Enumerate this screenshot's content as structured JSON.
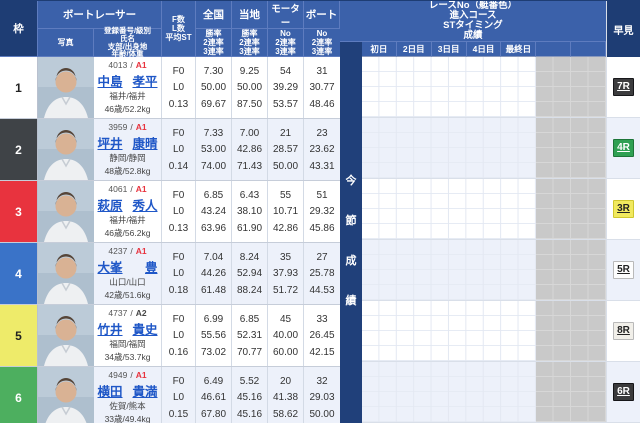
{
  "colors": {
    "header_blue": "#3b61aa",
    "navy": "#1e3d74",
    "row_alt": "#edf1fa",
    "gray_block": "#c9c9c9",
    "link_blue": "#1f57c7",
    "class_red": "#e8333e"
  },
  "header": {
    "left": {
      "frame": "枠",
      "group": "ボートレーサー",
      "photo": "写真",
      "info_lines": [
        "登録番号/級別",
        "氏名",
        "支部/出身地",
        "年齢/体重"
      ],
      "fl_lines": [
        "F数",
        "L数",
        "平均ST"
      ],
      "national": "全国",
      "local": "当地",
      "motor": "モーター",
      "boat": "ボート",
      "rate_lines": [
        "勝率",
        "2連率",
        "3連率"
      ],
      "no_lines": [
        "No",
        "2連率",
        "3連率"
      ]
    },
    "right": {
      "title_lines": [
        "レースNo（艇番色）",
        "進入コース",
        "STタイミング",
        "成績"
      ],
      "days": [
        "初日",
        "2日目",
        "3日目",
        "4日目",
        "最終日",
        "",
        ""
      ],
      "hayami": "早見",
      "season_label": [
        "今",
        "節",
        "成",
        "績"
      ]
    }
  },
  "rows": [
    {
      "frame": "1",
      "frame_bg": "#ffffff",
      "frame_fg": "#222222",
      "reg_no": "4013",
      "klass": "A1",
      "klass_color": "#e8333e",
      "family": "中島",
      "given": "孝平",
      "branch": "福井/福井",
      "age_weight": "46歳/52.2kg",
      "f": "F0",
      "l": "L0",
      "st": "0.13",
      "national": [
        "7.30",
        "50.00",
        "69.67"
      ],
      "local": [
        "9.25",
        "50.00",
        "87.50"
      ],
      "motor": [
        "54",
        "39.29",
        "53.57"
      ],
      "boat": [
        "31",
        "30.77",
        "48.46"
      ],
      "hayami": {
        "label": "7R",
        "bg": "#3c3c3e",
        "fg": "#ffffff",
        "border": "#17171a"
      }
    },
    {
      "frame": "2",
      "frame_bg": "#3f4347",
      "frame_fg": "#ffffff",
      "reg_no": "3959",
      "klass": "A1",
      "klass_color": "#e8333e",
      "family": "坪井",
      "given": "康晴",
      "branch": "静岡/静岡",
      "age_weight": "48歳/52.8kg",
      "f": "F0",
      "l": "L0",
      "st": "0.14",
      "national": [
        "7.33",
        "53.00",
        "74.00"
      ],
      "local": [
        "7.00",
        "42.86",
        "71.43"
      ],
      "motor": [
        "21",
        "28.57",
        "50.00"
      ],
      "boat": [
        "23",
        "23.62",
        "43.31"
      ],
      "hayami": {
        "label": "4R",
        "bg": "#2fa052",
        "fg": "#ffffff",
        "border": "#1c7538"
      }
    },
    {
      "frame": "3",
      "frame_bg": "#e8333e",
      "frame_fg": "#ffffff",
      "reg_no": "4061",
      "klass": "A1",
      "klass_color": "#e8333e",
      "family": "萩原",
      "given": "秀人",
      "branch": "福井/福井",
      "age_weight": "46歳/56.2kg",
      "f": "F0",
      "l": "L0",
      "st": "0.13",
      "national": [
        "6.85",
        "43.24",
        "63.96"
      ],
      "local": [
        "6.43",
        "38.10",
        "61.90"
      ],
      "motor": [
        "55",
        "10.71",
        "42.86"
      ],
      "boat": [
        "51",
        "29.32",
        "45.86"
      ],
      "hayami": {
        "label": "3R",
        "bg": "#f1e95e",
        "fg": "#222222",
        "border": "#cfc72e"
      }
    },
    {
      "frame": "4",
      "frame_bg": "#3a73c8",
      "frame_fg": "#ffffff",
      "reg_no": "4237",
      "klass": "A1",
      "klass_color": "#e8333e",
      "family": "大峯",
      "given": "豊",
      "branch": "山口/山口",
      "age_weight": "42歳/51.6kg",
      "f": "F0",
      "l": "L0",
      "st": "0.18",
      "national": [
        "7.04",
        "44.26",
        "61.48"
      ],
      "local": [
        "8.24",
        "52.94",
        "88.24"
      ],
      "motor": [
        "35",
        "37.93",
        "51.72"
      ],
      "boat": [
        "27",
        "25.78",
        "44.53"
      ],
      "hayami": {
        "label": "5R",
        "bg": "#fdfdfd",
        "fg": "#222222",
        "border": "#b9b9b9"
      }
    },
    {
      "frame": "5",
      "frame_bg": "#eeeb6a",
      "frame_fg": "#222222",
      "reg_no": "4737",
      "klass": "A2",
      "klass_color": "#444444",
      "family": "竹井",
      "given": "貴史",
      "branch": "福岡/福岡",
      "age_weight": "34歳/53.7kg",
      "f": "F0",
      "l": "L0",
      "st": "0.16",
      "national": [
        "6.99",
        "55.56",
        "73.02"
      ],
      "local": [
        "6.85",
        "52.31",
        "70.77"
      ],
      "motor": [
        "45",
        "40.00",
        "60.00"
      ],
      "boat": [
        "33",
        "26.45",
        "42.15"
      ],
      "hayami": {
        "label": "8R",
        "bg": "#f1efe9",
        "fg": "#222222",
        "border": "#b9b9b9"
      }
    },
    {
      "frame": "6",
      "frame_bg": "#4daf5f",
      "frame_fg": "#ffffff",
      "reg_no": "4949",
      "klass": "A1",
      "klass_color": "#e8333e",
      "family": "横田",
      "given": "貴満",
      "branch": "佐賀/熊本",
      "age_weight": "33歳/49.4kg",
      "f": "F0",
      "l": "L0",
      "st": "0.15",
      "national": [
        "6.49",
        "46.61",
        "67.80"
      ],
      "local": [
        "5.52",
        "45.16",
        "45.16"
      ],
      "motor": [
        "20",
        "41.38",
        "58.62"
      ],
      "boat": [
        "32",
        "29.03",
        "50.00"
      ],
      "hayami": {
        "label": "6R",
        "bg": "#3a3a3c",
        "fg": "#ffffff",
        "border": "#151518"
      }
    }
  ]
}
